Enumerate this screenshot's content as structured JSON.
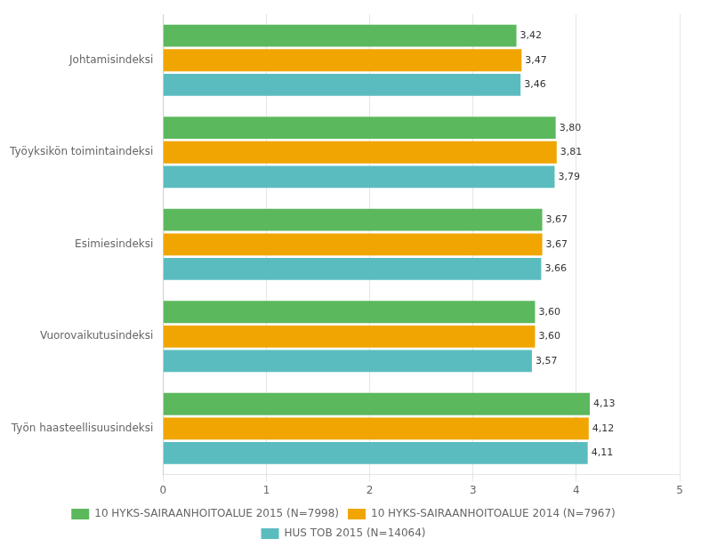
{
  "chart_data": {
    "type": "bar",
    "orientation": "horizontal",
    "categories": [
      "Johtamisindeksi",
      "Työyksikön toimintaindeksi",
      "Esimiesindeksi",
      "Vuorovaikutusindeksi",
      "Työn haasteellisuusindeksi"
    ],
    "series": [
      {
        "name": "10 HYKS-SAIRAANHOITOALUE 2015 (N=7998)",
        "color": "#5cb85c",
        "values": [
          3.42,
          3.8,
          3.67,
          3.6,
          4.13
        ],
        "value_labels": [
          "3,42",
          "3,80",
          "3,67",
          "3,60",
          "4,13"
        ]
      },
      {
        "name": "10 HYKS-SAIRAANHOITOALUE 2014 (N=7967)",
        "color": "#f0a500",
        "values": [
          3.47,
          3.81,
          3.67,
          3.6,
          4.12
        ],
        "value_labels": [
          "3,47",
          "3,81",
          "3,67",
          "3,60",
          "4,12"
        ]
      },
      {
        "name": "HUS TOB 2015 (N=14064)",
        "color": "#5bbcbf",
        "values": [
          3.46,
          3.79,
          3.66,
          3.57,
          4.11
        ],
        "value_labels": [
          "3,46",
          "3,79",
          "3,66",
          "3,57",
          "4,11"
        ]
      }
    ],
    "xlim": [
      0,
      5
    ],
    "xticks": [
      0,
      1,
      2,
      3,
      4,
      5
    ],
    "grid": "x",
    "legend": "bottom",
    "data_labels": true
  }
}
